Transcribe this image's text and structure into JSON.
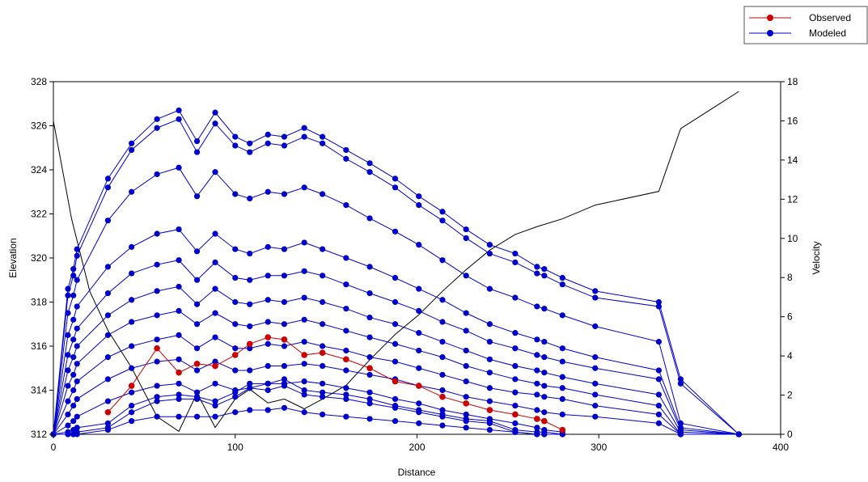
{
  "chart_data": {
    "type": "line",
    "xlabel": "Distance",
    "ylabel": "Elevation",
    "y2label": "Velocity",
    "xlim": [
      0,
      400
    ],
    "ylim": [
      312,
      328
    ],
    "y2lim": [
      0,
      18
    ],
    "x_ticks": [
      "0",
      "100",
      "200",
      "300",
      "400"
    ],
    "y_ticks": [
      "312",
      "314",
      "316",
      "318",
      "320",
      "322",
      "324",
      "326",
      "328"
    ],
    "y2_ticks": [
      "0",
      "2",
      "4",
      "6",
      "8",
      "10",
      "12",
      "14",
      "16",
      "18"
    ],
    "grid": false,
    "legend_position": "top-right",
    "legend": [
      {
        "label": "Observed",
        "color": "#cc0000"
      },
      {
        "label": "Modeled",
        "color": "#0000cc"
      }
    ],
    "colors": {
      "observed": "#cc0000",
      "modeled": "#0000cc",
      "velocity": "#000000"
    },
    "x": [
      0,
      8,
      11,
      13,
      30,
      43,
      57,
      69,
      79,
      89,
      100,
      108,
      118,
      127,
      138,
      148,
      161,
      174,
      188,
      201,
      214,
      227,
      240,
      254,
      266,
      270,
      280,
      298,
      333,
      345,
      377
    ],
    "modeled": [
      {
        "x": [
          0,
          8,
          11,
          13,
          30,
          43,
          57,
          69,
          79,
          89,
          100,
          108,
          118,
          127,
          138,
          148,
          161,
          174,
          188,
          201,
          214,
          227,
          240,
          254,
          266,
          270,
          280,
          298,
          333,
          345,
          377
        ],
        "y": [
          312,
          318.6,
          319.5,
          320.4,
          323.6,
          325.2,
          326.3,
          326.7,
          325.3,
          326.6,
          325.5,
          325.2,
          325.6,
          325.5,
          325.9,
          325.5,
          324.9,
          324.3,
          323.6,
          322.8,
          322.1,
          321.3,
          320.6,
          320.2,
          319.6,
          319.5,
          319.1,
          318.5,
          318.0,
          314.5,
          312
        ]
      },
      {
        "x": [
          0,
          8,
          11,
          13,
          30,
          43,
          57,
          69,
          79,
          89,
          100,
          108,
          118,
          127,
          138,
          148,
          161,
          174,
          188,
          201,
          214,
          227,
          240,
          254,
          266,
          270,
          280,
          298,
          333,
          345,
          377
        ],
        "y": [
          312,
          318.3,
          319.2,
          320.1,
          323.2,
          324.9,
          325.9,
          326.3,
          324.8,
          326.1,
          325.1,
          324.8,
          325.2,
          325.1,
          325.5,
          325.2,
          324.5,
          323.9,
          323.2,
          322.4,
          321.7,
          320.9,
          320.2,
          319.8,
          319.3,
          319.2,
          318.8,
          318.2,
          317.8,
          314.3,
          312
        ]
      },
      {
        "x": [
          0,
          8,
          11,
          13,
          30,
          43,
          57,
          69,
          79,
          89,
          100,
          108,
          118,
          127,
          138,
          148,
          161,
          174,
          188,
          201,
          214,
          227,
          240,
          254,
          266,
          270,
          280,
          298,
          333,
          345,
          377
        ],
        "y": [
          312,
          317.5,
          318.3,
          319.0,
          321.7,
          323.0,
          323.8,
          324.1,
          322.8,
          323.9,
          322.9,
          322.7,
          323.0,
          322.9,
          323.2,
          322.9,
          322.4,
          321.8,
          321.2,
          320.6,
          319.9,
          319.2,
          318.6,
          318.2,
          317.8,
          317.7,
          317.4,
          316.9,
          316.2,
          312.5,
          312
        ]
      },
      {
        "x": [
          0,
          8,
          11,
          13,
          30,
          43,
          57,
          69,
          79,
          89,
          100,
          108,
          118,
          127,
          138,
          148,
          161,
          174,
          188,
          201,
          214,
          227,
          240,
          254,
          266,
          270,
          280,
          298,
          333,
          345,
          377
        ],
        "y": [
          312,
          316.5,
          317.2,
          317.8,
          319.6,
          320.5,
          321.1,
          321.3,
          320.3,
          321.1,
          320.4,
          320.2,
          320.5,
          320.4,
          320.7,
          320.4,
          320.0,
          319.6,
          319.1,
          318.6,
          318.1,
          317.5,
          317.0,
          316.6,
          316.3,
          316.2,
          315.9,
          315.5,
          314.9,
          312.3,
          312
        ]
      },
      {
        "x": [
          0,
          8,
          11,
          13,
          30,
          43,
          57,
          69,
          79,
          89,
          100,
          108,
          118,
          127,
          138,
          148,
          161,
          174,
          188,
          201,
          214,
          227,
          240,
          254,
          266,
          270,
          280,
          298,
          333,
          345,
          377
        ],
        "y": [
          312,
          315.6,
          316.3,
          316.8,
          318.4,
          319.3,
          319.7,
          319.9,
          319.0,
          319.8,
          319.1,
          319.0,
          319.2,
          319.2,
          319.4,
          319.2,
          318.8,
          318.4,
          318.0,
          317.6,
          317.1,
          316.7,
          316.2,
          315.9,
          315.6,
          315.5,
          315.3,
          315.0,
          314.5,
          312.2,
          312
        ]
      },
      {
        "x": [
          0,
          8,
          11,
          13,
          30,
          43,
          57,
          69,
          79,
          89,
          100,
          108,
          118,
          127,
          138,
          148,
          161,
          174,
          188,
          201,
          214,
          227,
          240,
          254,
          266,
          270,
          280,
          298,
          333,
          345,
          377
        ],
        "y": [
          312,
          314.9,
          315.5,
          316.0,
          317.4,
          318.1,
          318.5,
          318.7,
          317.9,
          318.6,
          318.0,
          317.9,
          318.1,
          318.0,
          318.2,
          318.0,
          317.7,
          317.3,
          317.0,
          316.6,
          316.2,
          315.8,
          315.4,
          315.1,
          314.9,
          314.8,
          314.6,
          314.3,
          313.8,
          312.1,
          312
        ]
      },
      {
        "x": [
          0,
          8,
          11,
          13,
          30,
          43,
          57,
          69,
          79,
          89,
          100,
          108,
          118,
          127,
          138,
          148,
          161,
          174,
          188,
          201,
          214,
          227,
          240,
          254,
          266,
          270,
          280,
          298,
          333,
          345,
          377
        ],
        "y": [
          312,
          314.2,
          314.7,
          315.2,
          316.5,
          317.1,
          317.4,
          317.6,
          317.0,
          317.5,
          317.0,
          316.9,
          317.1,
          317.0,
          317.2,
          317.0,
          316.7,
          316.4,
          316.1,
          315.8,
          315.5,
          315.1,
          314.8,
          314.5,
          314.3,
          314.2,
          314.1,
          313.8,
          313.3,
          312.0,
          312
        ]
      },
      {
        "x": [
          0,
          8,
          11,
          13,
          30,
          43,
          57,
          69,
          79,
          89,
          100,
          108,
          118,
          127,
          138,
          148,
          161,
          174,
          188,
          201,
          214,
          227,
          240,
          254,
          266,
          270,
          280,
          298,
          333,
          345,
          377
        ],
        "y": [
          312,
          313.5,
          314.0,
          314.4,
          315.5,
          316.0,
          316.3,
          316.5,
          315.9,
          316.4,
          315.9,
          315.9,
          316.1,
          316.0,
          316.2,
          316.0,
          315.8,
          315.5,
          315.3,
          315.0,
          314.7,
          314.4,
          314.1,
          313.9,
          313.8,
          313.7,
          313.6,
          313.3,
          312.9,
          312.0,
          312
        ]
      },
      {
        "x": [
          0,
          8,
          11,
          13,
          30,
          43,
          57,
          69,
          79,
          89,
          100,
          108,
          118,
          127,
          138,
          148,
          161,
          174,
          188,
          201,
          214,
          227,
          240,
          254,
          266,
          270,
          280,
          298,
          333,
          345,
          377
        ],
        "y": [
          312,
          312.9,
          313.3,
          313.6,
          314.5,
          315.0,
          315.3,
          315.4,
          314.9,
          315.3,
          314.9,
          314.9,
          315.1,
          315.1,
          315.2,
          315.1,
          314.9,
          314.7,
          314.5,
          314.2,
          314.0,
          313.7,
          313.5,
          313.3,
          313.1,
          313.0,
          312.9,
          312.8,
          312.5,
          312.0,
          312
        ]
      },
      {
        "x": [
          0,
          8,
          11,
          13,
          30,
          43,
          57,
          69,
          79,
          89,
          100,
          108,
          118,
          127,
          138,
          148,
          161,
          174,
          188,
          201,
          214,
          227,
          240,
          254,
          266,
          270,
          280
        ],
        "y": [
          312,
          312.4,
          312.6,
          312.8,
          313.5,
          313.9,
          314.2,
          314.3,
          313.9,
          314.3,
          314.0,
          314.1,
          314.3,
          314.3,
          314.4,
          314.3,
          314.1,
          313.9,
          313.6,
          313.4,
          313.1,
          312.9,
          312.7,
          312.5,
          312.3,
          312.2,
          312.1
        ]
      },
      {
        "x": [
          0,
          8,
          11,
          13,
          30,
          43,
          57,
          69,
          79,
          89,
          100,
          108,
          118,
          127,
          138,
          148,
          161,
          174,
          188,
          201,
          214,
          227,
          240,
          254,
          266,
          270,
          280
        ],
        "y": [
          312,
          312.1,
          312.2,
          312.3,
          312.5,
          313.3,
          313.7,
          313.8,
          313.7,
          313.5,
          313.9,
          314.3,
          314.3,
          314.5,
          314.0,
          313.9,
          313.8,
          313.6,
          313.3,
          313.1,
          312.9,
          312.7,
          312.6,
          312.2,
          312.1,
          312.1,
          312.0
        ]
      },
      {
        "x": [
          0,
          8,
          11,
          13,
          30,
          43,
          57,
          69,
          79,
          89,
          100,
          108,
          118,
          127,
          138,
          148,
          161,
          174,
          188,
          201,
          214,
          227,
          240,
          254,
          266,
          270,
          280
        ],
        "y": [
          312,
          312.0,
          312.0,
          312.1,
          312.3,
          313.0,
          313.5,
          313.6,
          313.6,
          313.3,
          313.7,
          314.1,
          314.0,
          314.2,
          313.8,
          313.7,
          313.6,
          313.4,
          313.2,
          313.0,
          312.8,
          312.6,
          312.5,
          312.1,
          312.0,
          312.0,
          312.0
        ]
      },
      {
        "x": [
          0,
          8,
          11,
          13,
          30,
          43,
          57,
          69,
          79,
          89,
          100,
          108,
          118,
          127,
          138,
          148,
          161,
          174,
          188,
          201,
          214,
          227,
          240,
          254,
          266,
          270,
          280
        ],
        "y": [
          312,
          312.0,
          312.0,
          312.0,
          312.2,
          312.6,
          312.8,
          312.8,
          312.8,
          312.8,
          313.0,
          313.1,
          313.1,
          313.2,
          313.0,
          312.9,
          312.8,
          312.7,
          312.6,
          312.5,
          312.4,
          312.3,
          312.2,
          312.1,
          312.0,
          312.0,
          312.0
        ]
      }
    ],
    "observed": {
      "x": [
        30,
        43,
        57,
        69,
        79,
        89,
        100,
        108,
        118,
        127,
        138,
        148,
        161,
        174,
        188,
        201,
        214,
        227,
        240,
        254,
        266,
        270,
        280
      ],
      "y": [
        313.0,
        314.2,
        315.9,
        314.8,
        315.2,
        315.1,
        315.6,
        316.1,
        316.4,
        316.3,
        315.6,
        315.7,
        315.4,
        315.0,
        314.4,
        314.2,
        313.7,
        313.4,
        313.1,
        312.9,
        312.7,
        312.6,
        312.2
      ]
    },
    "velocity": {
      "x": [
        0,
        10,
        20,
        30,
        43,
        57,
        69,
        79,
        89,
        100,
        108,
        118,
        127,
        138,
        148,
        161,
        174,
        188,
        201,
        214,
        227,
        240,
        254,
        266,
        280,
        298,
        333,
        345,
        377
      ],
      "y": [
        16,
        11,
        7.3,
        5.3,
        3.4,
        0.9,
        0.15,
        2.1,
        0.35,
        1.8,
        2.3,
        1.6,
        1.8,
        1.3,
        1.8,
        2.5,
        3.8,
        5.1,
        6.1,
        7.3,
        8.4,
        9.4,
        10.2,
        10.6,
        11.0,
        11.7,
        12.4,
        15.6,
        17.5
      ]
    }
  }
}
